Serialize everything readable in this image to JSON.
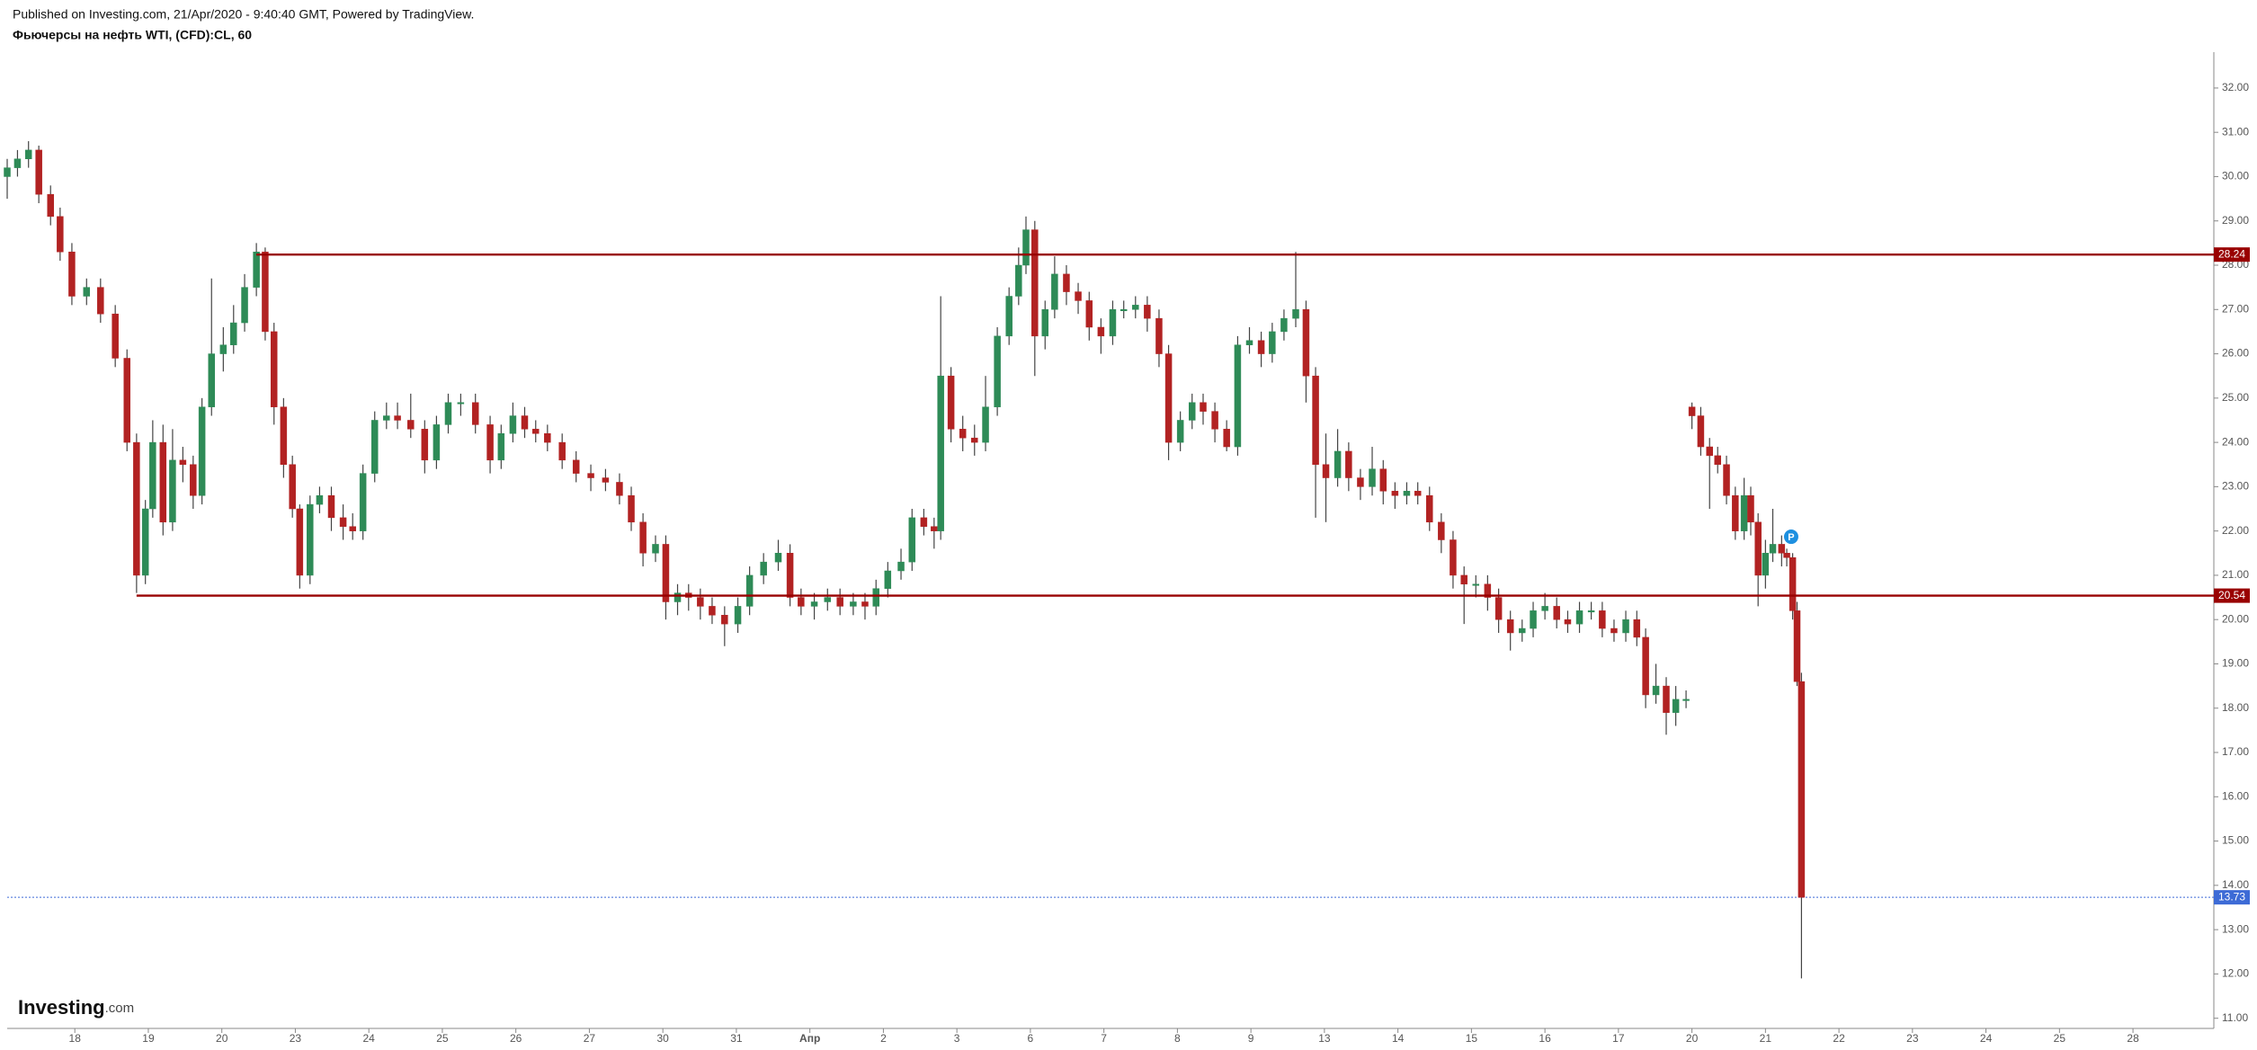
{
  "chart_data": {
    "type": "candlestick",
    "subtitle": "Published on Investing.com, 21/Apr/2020 - 9:40:40 GMT, Powered by TradingView.",
    "title": "Фьючерсы на нефть WTI, (CFD):CL, 60",
    "logo": "Investing",
    "logo_suffix": ".com",
    "up_color": "#2e8b57",
    "down_color": "#b22222",
    "wick_color": "#444444",
    "x": [
      -0.92,
      -0.78,
      -0.63,
      -0.49,
      -0.33,
      -0.2,
      -0.04,
      0.16,
      0.35,
      0.55,
      0.71,
      0.84,
      0.96,
      1.06,
      1.2,
      1.33,
      1.47,
      1.61,
      1.73,
      1.86,
      2.02,
      2.16,
      2.31,
      2.47,
      2.59,
      2.71,
      2.84,
      2.96,
      3.06,
      3.2,
      3.33,
      3.49,
      3.65,
      3.78,
      3.92,
      4.08,
      4.24,
      4.39,
      4.57,
      4.76,
      4.92,
      5.08,
      5.25,
      5.45,
      5.65,
      5.8,
      5.96,
      6.12,
      6.27,
      6.43,
      6.63,
      6.82,
      7.02,
      7.22,
      7.41,
      7.57,
      7.73,
      7.9,
      8.04,
      8.2,
      8.35,
      8.51,
      8.67,
      8.84,
      9.02,
      9.18,
      9.37,
      9.57,
      9.73,
      9.88,
      10.06,
      10.24,
      10.41,
      10.59,
      10.75,
      10.9,
      11.06,
      11.24,
      11.39,
      11.55,
      11.69,
      11.78,
      11.92,
      12.08,
      12.24,
      12.39,
      12.55,
      12.71,
      12.84,
      12.94,
      13.06,
      13.2,
      13.33,
      13.49,
      13.65,
      13.8,
      13.96,
      14.12,
      14.27,
      14.43,
      14.59,
      14.75,
      14.88,
      15.04,
      15.2,
      15.35,
      15.51,
      15.67,
      15.82,
      15.98,
      16.14,
      16.29,
      16.45,
      16.61,
      16.75,
      16.88,
      17.02,
      17.18,
      17.33,
      17.49,
      17.65,
      17.8,
      17.96,
      18.12,
      18.27,
      18.43,
      18.59,
      18.75,
      18.9,
      19.06,
      19.22,
      19.37,
      19.53,
      19.69,
      19.84,
      20.0,
      20.16,
      20.31,
      20.47,
      20.63,
      20.78,
      20.94,
      21.1,
      21.25,
      21.37,
      21.51,
      21.65,
      21.78,
      21.92,
      22.0,
      22.12,
      22.24,
      22.35,
      22.47,
      22.59,
      22.71,
      22.8,
      22.9,
      23.0,
      23.1,
      23.22,
      23.29,
      23.37,
      23.43,
      23.49
    ],
    "open": [
      30.0,
      30.2,
      30.4,
      30.6,
      29.6,
      29.1,
      28.3,
      27.3,
      27.5,
      26.9,
      25.9,
      24.0,
      21.0,
      22.5,
      24.0,
      22.2,
      23.6,
      23.5,
      22.8,
      24.8,
      26.0,
      26.2,
      26.7,
      27.5,
      28.3,
      26.5,
      24.8,
      23.5,
      22.5,
      21.0,
      22.6,
      22.8,
      22.3,
      22.1,
      22.0,
      23.3,
      24.5,
      24.6,
      24.5,
      24.3,
      23.6,
      24.4,
      24.9,
      24.9,
      24.4,
      23.6,
      24.2,
      24.6,
      24.3,
      24.2,
      24.0,
      23.6,
      23.3,
      23.2,
      23.1,
      22.8,
      22.2,
      21.5,
      21.7,
      20.4,
      20.6,
      20.5,
      20.3,
      20.1,
      19.9,
      20.3,
      21.0,
      21.3,
      21.5,
      20.5,
      20.3,
      20.4,
      20.5,
      20.3,
      20.4,
      20.3,
      20.7,
      21.1,
      21.3,
      22.3,
      22.1,
      22.0,
      25.5,
      24.3,
      24.1,
      24.0,
      24.8,
      26.4,
      27.3,
      28.0,
      28.8,
      26.4,
      27.0,
      27.8,
      27.4,
      27.2,
      26.6,
      26.4,
      27.0,
      27.0,
      27.1,
      26.8,
      26.0,
      24.0,
      24.5,
      24.9,
      24.7,
      24.3,
      23.9,
      26.2,
      26.3,
      26.0,
      26.5,
      26.8,
      27.0,
      25.5,
      23.5,
      23.2,
      23.8,
      23.2,
      23.0,
      23.4,
      22.9,
      22.8,
      22.9,
      22.8,
      22.2,
      21.8,
      21.0,
      20.8,
      20.8,
      20.5,
      20.0,
      19.7,
      19.8,
      20.2,
      20.3,
      20.0,
      19.9,
      20.2,
      20.2,
      19.8,
      19.7,
      20.0,
      19.6,
      18.3,
      18.5,
      17.9,
      18.2,
      24.8,
      24.6,
      23.9,
      23.7,
      23.5,
      22.8,
      22.0,
      22.8,
      22.2,
      21.0,
      21.5,
      21.7,
      21.5,
      21.4,
      20.2,
      18.6
    ],
    "high": [
      30.4,
      30.6,
      30.8,
      30.7,
      29.8,
      29.3,
      28.5,
      27.7,
      27.7,
      27.1,
      26.1,
      24.2,
      22.7,
      24.5,
      24.4,
      24.3,
      23.9,
      23.7,
      25.0,
      27.7,
      26.6,
      27.1,
      27.8,
      28.5,
      28.4,
      26.7,
      25.0,
      23.7,
      22.6,
      22.8,
      23.0,
      23.0,
      22.6,
      22.4,
      23.5,
      24.7,
      24.9,
      24.9,
      25.1,
      24.5,
      24.6,
      25.1,
      25.1,
      25.1,
      24.6,
      24.4,
      24.9,
      24.8,
      24.5,
      24.4,
      24.2,
      23.8,
      23.5,
      23.4,
      23.3,
      23.0,
      22.4,
      21.9,
      21.9,
      20.8,
      20.8,
      20.7,
      20.5,
      20.3,
      20.5,
      21.2,
      21.5,
      21.8,
      21.7,
      20.7,
      20.6,
      20.7,
      20.7,
      20.6,
      20.6,
      20.9,
      21.3,
      21.6,
      22.5,
      22.5,
      22.3,
      27.3,
      25.7,
      24.6,
      24.4,
      25.5,
      26.6,
      27.5,
      28.4,
      29.1,
      29.0,
      27.2,
      28.2,
      28.0,
      27.6,
      27.4,
      26.8,
      27.2,
      27.2,
      27.3,
      27.3,
      27.0,
      26.2,
      24.7,
      25.1,
      25.1,
      24.9,
      24.5,
      26.4,
      26.6,
      26.5,
      26.7,
      27.0,
      28.3,
      27.2,
      25.7,
      24.2,
      24.3,
      24.0,
      23.4,
      23.9,
      23.6,
      23.1,
      23.1,
      23.1,
      23.0,
      22.4,
      22.0,
      21.2,
      21.0,
      21.0,
      20.7,
      20.2,
      20.0,
      20.4,
      20.6,
      20.5,
      20.2,
      20.4,
      20.4,
      20.4,
      20.0,
      20.2,
      20.2,
      19.8,
      19.0,
      18.7,
      18.5,
      18.4,
      24.9,
      24.8,
      24.1,
      23.9,
      23.7,
      23.0,
      23.2,
      23.0,
      22.4,
      21.8,
      22.5,
      21.9,
      21.6,
      21.5,
      20.4,
      18.8
    ],
    "low": [
      29.5,
      30.0,
      30.2,
      29.4,
      28.9,
      28.1,
      27.1,
      27.1,
      26.7,
      25.7,
      23.8,
      20.6,
      20.8,
      22.3,
      21.9,
      22.0,
      23.1,
      22.5,
      22.6,
      24.6,
      25.6,
      26.0,
      26.5,
      27.3,
      26.3,
      24.4,
      23.2,
      22.3,
      20.7,
      20.8,
      22.4,
      22.0,
      21.8,
      21.8,
      21.8,
      23.1,
      24.3,
      24.3,
      24.1,
      23.3,
      23.4,
      24.2,
      24.6,
      24.2,
      23.3,
      23.4,
      24.0,
      24.1,
      24.0,
      23.8,
      23.4,
      23.1,
      22.9,
      22.9,
      22.6,
      22.0,
      21.2,
      21.3,
      20.0,
      20.1,
      20.2,
      20.0,
      19.9,
      19.4,
      19.7,
      20.1,
      20.8,
      21.1,
      20.3,
      20.1,
      20.0,
      20.2,
      20.1,
      20.1,
      20.0,
      20.1,
      20.5,
      20.9,
      21.1,
      21.9,
      21.6,
      21.8,
      24.0,
      23.8,
      23.7,
      23.8,
      24.6,
      26.2,
      27.1,
      27.8,
      25.5,
      26.1,
      26.8,
      27.1,
      26.9,
      26.3,
      26.0,
      26.2,
      26.8,
      26.8,
      26.5,
      25.7,
      23.6,
      23.8,
      24.3,
      24.4,
      24.0,
      23.8,
      23.7,
      26.0,
      25.7,
      25.8,
      26.3,
      26.6,
      24.9,
      22.3,
      22.2,
      23.0,
      22.9,
      22.7,
      22.8,
      22.6,
      22.5,
      22.6,
      22.6,
      22.0,
      21.5,
      20.7,
      19.9,
      20.5,
      20.2,
      19.7,
      19.3,
      19.5,
      19.6,
      20.0,
      19.8,
      19.7,
      19.7,
      20.0,
      19.6,
      19.5,
      19.5,
      19.4,
      18.0,
      18.1,
      17.4,
      17.6,
      18.0,
      24.3,
      23.7,
      22.5,
      23.3,
      22.6,
      21.8,
      21.8,
      21.9,
      20.3,
      20.7,
      21.3,
      21.2,
      21.2,
      20.0,
      18.5,
      11.9
    ],
    "close": [
      30.2,
      30.4,
      30.6,
      29.6,
      29.1,
      28.3,
      27.3,
      27.5,
      26.9,
      25.9,
      24.0,
      21.0,
      22.5,
      24.0,
      22.2,
      23.6,
      23.5,
      22.8,
      24.8,
      26.0,
      26.2,
      26.7,
      27.5,
      28.3,
      26.5,
      24.8,
      23.5,
      22.5,
      21.0,
      22.6,
      22.8,
      22.3,
      22.1,
      22.0,
      23.3,
      24.5,
      24.6,
      24.5,
      24.3,
      23.6,
      24.4,
      24.9,
      24.9,
      24.4,
      23.6,
      24.2,
      24.6,
      24.3,
      24.2,
      24.0,
      23.6,
      23.3,
      23.2,
      23.1,
      22.8,
      22.2,
      21.5,
      21.7,
      20.4,
      20.6,
      20.5,
      20.3,
      20.1,
      19.9,
      20.3,
      21.0,
      21.3,
      21.5,
      20.5,
      20.3,
      20.4,
      20.5,
      20.3,
      20.4,
      20.3,
      20.7,
      21.1,
      21.3,
      22.3,
      22.1,
      22.0,
      25.5,
      24.3,
      24.1,
      24.0,
      24.8,
      26.4,
      27.3,
      28.0,
      28.8,
      26.4,
      27.0,
      27.8,
      27.4,
      27.2,
      26.6,
      26.4,
      27.0,
      27.0,
      27.1,
      26.8,
      26.0,
      24.0,
      24.5,
      24.9,
      24.7,
      24.3,
      23.9,
      26.2,
      26.3,
      26.0,
      26.5,
      26.8,
      27.0,
      25.5,
      23.5,
      23.2,
      23.8,
      23.2,
      23.0,
      23.4,
      22.9,
      22.8,
      22.9,
      22.8,
      22.2,
      21.8,
      21.0,
      20.8,
      20.8,
      20.5,
      20.0,
      19.7,
      19.8,
      20.2,
      20.3,
      20.0,
      19.9,
      20.2,
      20.2,
      19.8,
      19.7,
      20.0,
      19.6,
      18.3,
      18.5,
      17.9,
      18.2,
      18.2,
      24.6,
      23.9,
      23.7,
      23.5,
      22.8,
      22.0,
      22.8,
      22.2,
      21.0,
      21.5,
      21.7,
      21.5,
      21.4,
      20.2,
      18.6,
      13.73
    ],
    "xlim": [
      -0.92,
      29.1
    ],
    "ylim": [
      10.77,
      32.81
    ],
    "xticks": [
      {
        "value": 0,
        "label": "18"
      },
      {
        "value": 1,
        "label": "19"
      },
      {
        "value": 2,
        "label": "20"
      },
      {
        "value": 3,
        "label": "23"
      },
      {
        "value": 4,
        "label": "24"
      },
      {
        "value": 5,
        "label": "25"
      },
      {
        "value": 6,
        "label": "26"
      },
      {
        "value": 7,
        "label": "27"
      },
      {
        "value": 8,
        "label": "30"
      },
      {
        "value": 9,
        "label": "31"
      },
      {
        "value": 10,
        "label": "Апр"
      },
      {
        "value": 11,
        "label": "2"
      },
      {
        "value": 12,
        "label": "3"
      },
      {
        "value": 13,
        "label": "6"
      },
      {
        "value": 14,
        "label": "7"
      },
      {
        "value": 15,
        "label": "8"
      },
      {
        "value": 16,
        "label": "9"
      },
      {
        "value": 17,
        "label": "13"
      },
      {
        "value": 18,
        "label": "14"
      },
      {
        "value": 19,
        "label": "15"
      },
      {
        "value": 20,
        "label": "16"
      },
      {
        "value": 21,
        "label": "17"
      },
      {
        "value": 22,
        "label": "20"
      },
      {
        "value": 23,
        "label": "21"
      },
      {
        "value": 24,
        "label": "22"
      },
      {
        "value": 25,
        "label": "23"
      },
      {
        "value": 26,
        "label": "24"
      },
      {
        "value": 27,
        "label": "25"
      },
      {
        "value": 28,
        "label": "28"
      }
    ],
    "yticks": [
      {
        "value": 11,
        "label": "11.00"
      },
      {
        "value": 12,
        "label": "12.00"
      },
      {
        "value": 13,
        "label": "13.00"
      },
      {
        "value": 14,
        "label": "14.00"
      },
      {
        "value": 15,
        "label": "15.00"
      },
      {
        "value": 16,
        "label": "16.00"
      },
      {
        "value": 17,
        "label": "17.00"
      },
      {
        "value": 18,
        "label": "18.00"
      },
      {
        "value": 19,
        "label": "19.00"
      },
      {
        "value": 20,
        "label": "20.00"
      },
      {
        "value": 21,
        "label": "21.00"
      },
      {
        "value": 22,
        "label": "22.00"
      },
      {
        "value": 23,
        "label": "23.00"
      },
      {
        "value": 24,
        "label": "24.00"
      },
      {
        "value": 25,
        "label": "25.00"
      },
      {
        "value": 26,
        "label": "26.00"
      },
      {
        "value": 27,
        "label": "27.00"
      },
      {
        "value": 28,
        "label": "28.00"
      },
      {
        "value": 29,
        "label": "29.00"
      },
      {
        "value": 30,
        "label": "30.00"
      },
      {
        "value": 31,
        "label": "31.00"
      },
      {
        "value": 32,
        "label": "32.00"
      }
    ],
    "levels": [
      {
        "value": 28.24,
        "x": 2.47,
        "color": "#990000"
      },
      {
        "value": 20.54,
        "x": 0.84,
        "color": "#990000"
      }
    ],
    "last_price": {
      "value": 13.73,
      "color": "#3d6bd6"
    },
    "marker": {
      "label": "P",
      "x": 23.35,
      "y": 21.87,
      "color": "#1e90e0"
    }
  }
}
